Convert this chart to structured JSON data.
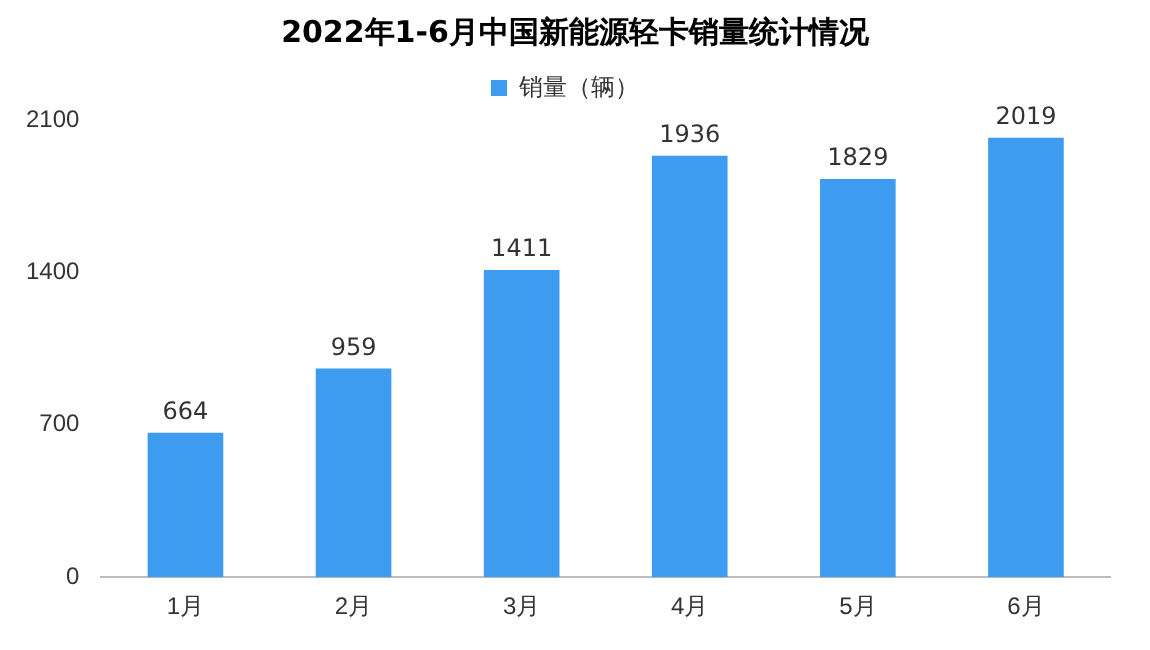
{
  "chart_data": {
    "type": "bar",
    "title": "2022年1-6月中国新能源轻卡销量统计情况",
    "categories": [
      "1月",
      "2月",
      "3月",
      "4月",
      "5月",
      "6月"
    ],
    "series": [
      {
        "name": "销量（辆）",
        "color": "#3d9cf0",
        "values": [
          664,
          959,
          1411,
          1936,
          1829,
          2019
        ]
      }
    ],
    "ylim": [
      0,
      2100
    ],
    "yticks": [
      0,
      700,
      1400,
      2100
    ],
    "grid": false,
    "legend": "top",
    "data_labels": true
  }
}
